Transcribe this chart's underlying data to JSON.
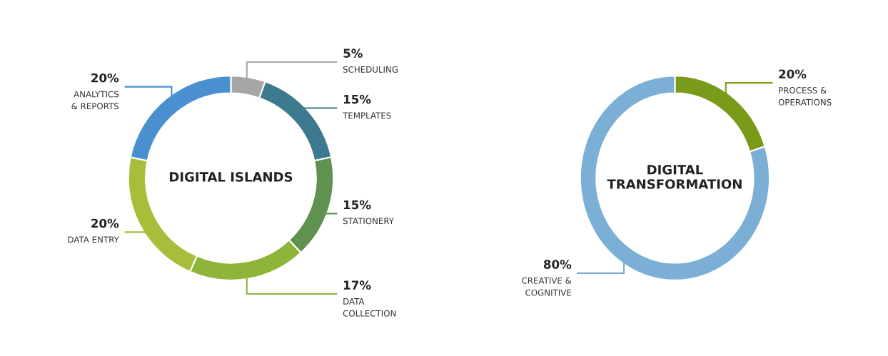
{
  "chart_data": [
    {
      "type": "donut",
      "title": "DIGITAL ISLANDS",
      "categories": [
        "SCHEDULING",
        "TEMPLATES",
        "STATIONERY",
        "DATA COLLECTION",
        "DATA ENTRY",
        "ANALYTICS & REPORTS"
      ],
      "values": [
        5,
        15,
        15,
        17,
        20,
        20
      ],
      "value_labels": [
        "5%",
        "15%",
        "15%",
        "17%",
        "20%",
        "20%"
      ],
      "colors": [
        "#a6a6a6",
        "#3e7a8f",
        "#5f9150",
        "#8fb43a",
        "#a6be3a",
        "#4a90d0"
      ]
    },
    {
      "type": "donut",
      "title": "DIGITAL TRANSFORMATION",
      "categories": [
        "PROCESS & OPERATIONS",
        "CREATIVE & COGNITIVE"
      ],
      "values": [
        20,
        80
      ],
      "value_labels": [
        "20%",
        "80%"
      ],
      "colors": [
        "#7a9a1a",
        "#7bafd6"
      ]
    }
  ]
}
